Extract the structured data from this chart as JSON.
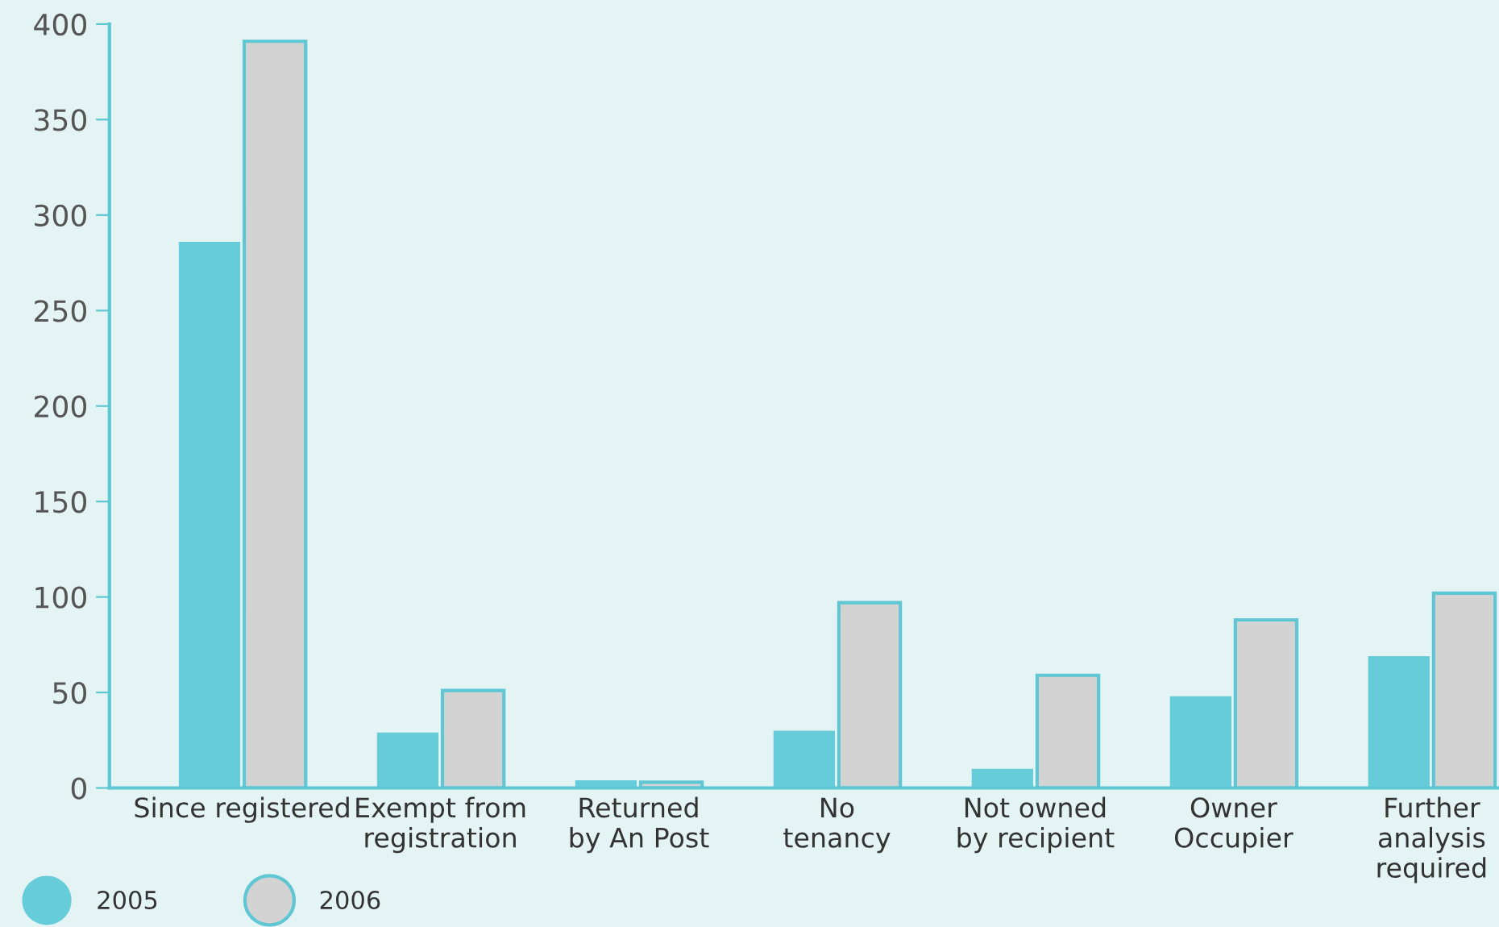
{
  "chart_data": {
    "type": "bar",
    "categories": [
      "Since registered",
      "Exempt from\nregistration",
      "Returned\nby An Post",
      "No\ntenancy",
      "Not owned\nby recipient",
      "Owner\nOccupier",
      "Further\nanalysis\nrequired"
    ],
    "series": [
      {
        "name": "2005",
        "color": "#66ccd9",
        "values": [
          286,
          29,
          4,
          30,
          10,
          48,
          69
        ]
      },
      {
        "name": "2006",
        "color": "#d3d3d3",
        "values": [
          391,
          51,
          3,
          97,
          59,
          88,
          102
        ]
      }
    ],
    "ylim": [
      0,
      400
    ],
    "yticks": [
      0,
      50,
      100,
      150,
      200,
      250,
      300,
      350,
      400
    ],
    "grid": false,
    "legend": "bottom left"
  }
}
